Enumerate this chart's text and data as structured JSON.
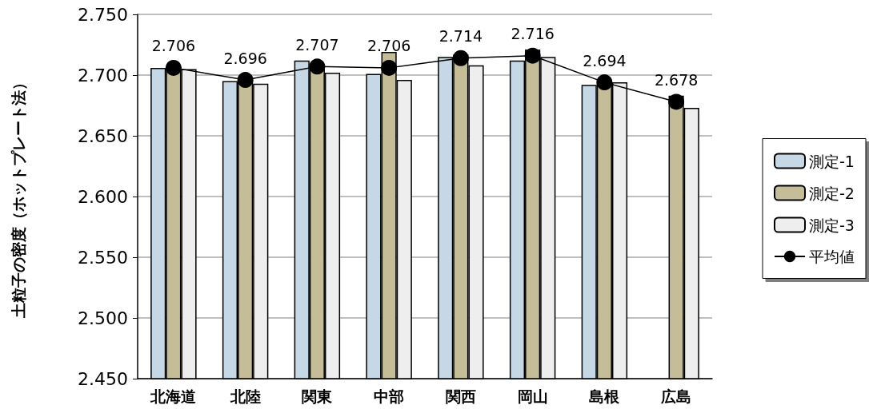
{
  "chart_data": {
    "type": "bar",
    "ylabel": "土粒子の密度（ホットプレート法）",
    "categories": [
      "北海道",
      "北陸",
      "関東",
      "中部",
      "関西",
      "岡山",
      "島根",
      "広島"
    ],
    "series": [
      {
        "name": "測定-1",
        "color": "#c6d8e6",
        "values": [
          2.706,
          2.695,
          2.712,
          2.701,
          2.715,
          2.712,
          2.692,
          null
        ]
      },
      {
        "name": "測定-2",
        "color": "#c4bd97",
        "values": [
          2.707,
          2.698,
          2.707,
          2.719,
          2.717,
          2.721,
          2.696,
          2.683
        ]
      },
      {
        "name": "測定-3",
        "color": "#eeeeee",
        "values": [
          2.705,
          2.693,
          2.702,
          2.696,
          2.708,
          2.715,
          2.694,
          2.673
        ]
      },
      {
        "name": "平均値",
        "type": "line",
        "color": "#000000",
        "marker": "circle",
        "values": [
          2.706,
          2.696,
          2.707,
          2.706,
          2.714,
          2.716,
          2.694,
          2.678
        ],
        "value_labels": [
          "2.706",
          "2.696",
          "2.707",
          "2.706",
          "2.714",
          "2.716",
          "2.694",
          "2.678"
        ]
      }
    ],
    "ylim": [
      2.45,
      2.75
    ],
    "yticks": [
      {
        "value": 2.45,
        "label": "2.450"
      },
      {
        "value": 2.5,
        "label": "2.500"
      },
      {
        "value": 2.55,
        "label": "2.550"
      },
      {
        "value": 2.6,
        "label": "2.600"
      },
      {
        "value": 2.65,
        "label": "2.650"
      },
      {
        "value": 2.7,
        "label": "2.700"
      },
      {
        "value": 2.75,
        "label": "2.750"
      }
    ],
    "grid": "y",
    "legend": "right"
  }
}
